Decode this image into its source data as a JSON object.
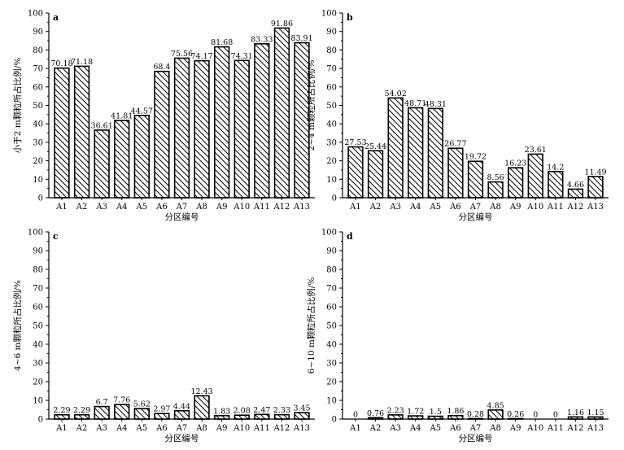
{
  "chart_data": [
    {
      "type": "bar",
      "panel_label": "a",
      "categories": [
        "A1",
        "A2",
        "A3",
        "A4",
        "A5",
        "A6",
        "A7",
        "A8",
        "A9",
        "A10",
        "A11",
        "A12",
        "A13"
      ],
      "values": [
        70.18,
        71.18,
        36.61,
        41.81,
        44.57,
        68.4,
        75.56,
        74.17,
        81.68,
        74.31,
        83.33,
        91.86,
        83.91
      ],
      "data_labels": [
        "70.18",
        "71.18",
        "36.61",
        "41.81",
        "44.57",
        "68.4",
        "75.56",
        "74.17",
        "81.68",
        "74.31",
        "83.33",
        "91.86",
        "83.91"
      ],
      "xlabel": "分区编号",
      "ylabel": "小于2 m颗粒所占比例/%",
      "ylim": [
        0,
        100
      ],
      "yticks": [
        0,
        10,
        20,
        30,
        40,
        50,
        60,
        70,
        80,
        90,
        100
      ],
      "grid": false
    },
    {
      "type": "bar",
      "panel_label": "b",
      "categories": [
        "A1",
        "A2",
        "A3",
        "A4",
        "A5",
        "A6",
        "A7",
        "A8",
        "A9",
        "A10",
        "A11",
        "A12",
        "A13"
      ],
      "values": [
        27.53,
        25.44,
        54.02,
        48.71,
        48.31,
        26.77,
        19.72,
        8.56,
        16.23,
        23.61,
        14.2,
        4.66,
        11.49
      ],
      "data_labels": [
        "27.53",
        "25.44",
        "54.02",
        "48.71",
        "48.31",
        "26.77",
        "19.72",
        "8.56",
        "16.23",
        "23.61",
        "14.2",
        "4.66",
        "11.49"
      ],
      "xlabel": "分区编号",
      "ylabel": "2~4 m颗粒所占比例/%",
      "ylim": [
        0,
        100
      ],
      "yticks": [
        0,
        10,
        20,
        30,
        40,
        50,
        60,
        70,
        80,
        90,
        100
      ],
      "grid": false
    },
    {
      "type": "bar",
      "panel_label": "c",
      "categories": [
        "A1",
        "A2",
        "A3",
        "A4",
        "A5",
        "A6",
        "A7",
        "A8",
        "A9",
        "A10",
        "A11",
        "A12",
        "A13"
      ],
      "values": [
        2.29,
        2.29,
        6.7,
        7.76,
        5.62,
        2.97,
        4.44,
        12.43,
        1.83,
        2.08,
        2.47,
        2.33,
        3.45
      ],
      "data_labels": [
        "2.29",
        "2.29",
        "6.7",
        "7.76",
        "5.62",
        "2.97",
        "4.44",
        "12.43",
        "1.83",
        "2.08",
        "2.47",
        "2.33",
        "3.45"
      ],
      "xlabel": "分区编号",
      "ylabel": "4~6 m颗粒所占比例/%",
      "ylim": [
        0,
        100
      ],
      "yticks": [
        0,
        10,
        20,
        30,
        40,
        50,
        60,
        70,
        80,
        90,
        100
      ],
      "grid": false
    },
    {
      "type": "bar",
      "panel_label": "d",
      "categories": [
        "A1",
        "A2",
        "A3",
        "A4",
        "A5",
        "A6",
        "A7",
        "A8",
        "A9",
        "A10",
        "A11",
        "A12",
        "A13"
      ],
      "values": [
        0,
        0.76,
        2.23,
        1.72,
        1.5,
        1.86,
        0.28,
        4.85,
        0.26,
        0,
        0,
        1.16,
        1.15
      ],
      "data_labels": [
        "0",
        "0.76",
        "2.23",
        "1.72",
        "1.5",
        "1.86",
        "0.28",
        "4.85",
        "0.26",
        "0",
        "0",
        "1.16",
        "1.15"
      ],
      "xlabel": "分区编号",
      "ylabel": "6~10 m颗粒所占比例/%",
      "ylim": [
        0,
        100
      ],
      "yticks": [
        0,
        10,
        20,
        30,
        40,
        50,
        60,
        70,
        80,
        90,
        100
      ],
      "grid": false
    }
  ]
}
